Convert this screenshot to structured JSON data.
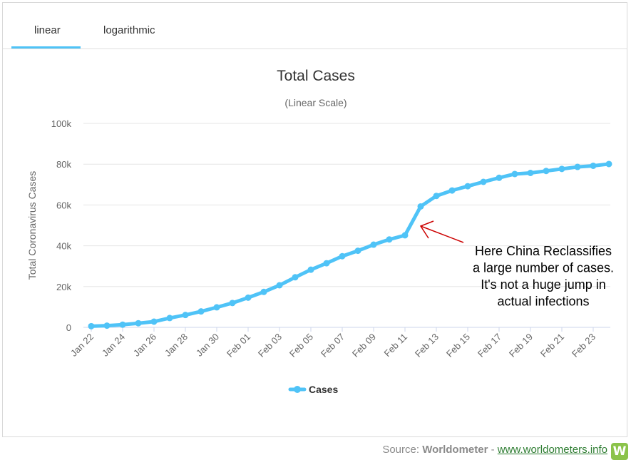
{
  "tabs": [
    {
      "label": "linear",
      "active": true
    },
    {
      "label": "logarithmic",
      "active": false
    }
  ],
  "footer": {
    "source_prefix": "Source: ",
    "source_name": "Worldometer",
    "separator": " - ",
    "link_text": "www.worldometers.info"
  },
  "annotation": {
    "lines": [
      "Here China Reclassifies",
      "a large number of cases.",
      "It's not a huge jump in",
      "actual infections"
    ],
    "color": "#cc0000"
  },
  "chart_data": {
    "type": "line",
    "title": "Total Cases",
    "subtitle": "(Linear Scale)",
    "xlabel": "",
    "ylabel": "Total Coronavirus Cases",
    "x": [
      "Jan 22",
      "Jan 23",
      "Jan 24",
      "Jan 25",
      "Jan 26",
      "Jan 27",
      "Jan 28",
      "Jan 29",
      "Jan 30",
      "Jan 31",
      "Feb 01",
      "Feb 02",
      "Feb 03",
      "Feb 04",
      "Feb 05",
      "Feb 06",
      "Feb 07",
      "Feb 08",
      "Feb 09",
      "Feb 10",
      "Feb 11",
      "Feb 12",
      "Feb 13",
      "Feb 14",
      "Feb 15",
      "Feb 16",
      "Feb 17",
      "Feb 18",
      "Feb 19",
      "Feb 20",
      "Feb 21",
      "Feb 22",
      "Feb 23",
      "Feb 24"
    ],
    "x_tick_labels": [
      "Jan 22",
      "Jan 24",
      "Jan 26",
      "Jan 28",
      "Jan 30",
      "Feb 01",
      "Feb 03",
      "Feb 05",
      "Feb 07",
      "Feb 09",
      "Feb 11",
      "Feb 13",
      "Feb 15",
      "Feb 17",
      "Feb 19",
      "Feb 21",
      "Feb 23"
    ],
    "series": [
      {
        "name": "Cases",
        "color": "#4fc3f7",
        "values": [
          580,
          845,
          1317,
          2015,
          2800,
          4581,
          6058,
          7813,
          9823,
          11950,
          14553,
          17391,
          20630,
          24545,
          28266,
          31439,
          34876,
          37552,
          40553,
          43099,
          45134,
          59287,
          64438,
          67100,
          69197,
          71329,
          73332,
          75184,
          75700,
          76677,
          77673,
          78651,
          79205,
          80087
        ]
      }
    ],
    "ylim": [
      0,
      100000
    ],
    "y_ticks": [
      0,
      20000,
      40000,
      60000,
      80000,
      100000
    ],
    "y_tick_labels": [
      "0",
      "20k",
      "40k",
      "60k",
      "80k",
      "100k"
    ],
    "grid": true,
    "legend_position": "bottom"
  }
}
